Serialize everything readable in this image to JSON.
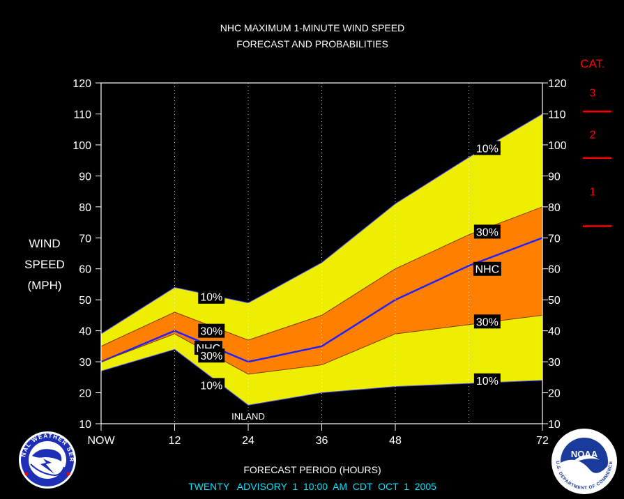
{
  "chart_data": {
    "type": "area",
    "title": "NHC MAXIMUM 1-MINUTE WIND SPEED",
    "subtitle": "FORECAST AND PROBABILITIES",
    "xlabel": "FORECAST PERIOD (HOURS)",
    "ylabel": [
      "WIND",
      "SPEED",
      "(MPH)"
    ],
    "ylim": [
      10,
      120
    ],
    "xlim": [
      0,
      72
    ],
    "yticks": [
      10,
      20,
      30,
      40,
      50,
      60,
      70,
      80,
      90,
      100,
      110,
      120
    ],
    "xticks": [
      {
        "x": 0,
        "label": "NOW"
      },
      {
        "x": 12,
        "label": "12"
      },
      {
        "x": 24,
        "label": "24"
      },
      {
        "x": 36,
        "label": "36"
      },
      {
        "x": 48,
        "label": "48"
      },
      {
        "x": 72,
        "label": "72"
      }
    ],
    "gridlines_x": [
      12,
      24,
      36,
      48,
      60
    ],
    "x": [
      0,
      12,
      24,
      36,
      48,
      60,
      72
    ],
    "series": [
      {
        "name": "10% upper",
        "values": [
          39,
          54,
          49,
          62,
          81,
          96,
          110
        ]
      },
      {
        "name": "30% upper",
        "values": [
          35,
          46,
          37,
          45,
          60,
          71,
          80
        ]
      },
      {
        "name": "NHC",
        "values": [
          30,
          40,
          30,
          35,
          50,
          61,
          70
        ]
      },
      {
        "name": "30% lower",
        "values": [
          30,
          39,
          26,
          29,
          39,
          42,
          45
        ]
      },
      {
        "name": "10% lower",
        "values": [
          27,
          34,
          16,
          20,
          22,
          23,
          24
        ]
      }
    ],
    "band_labels": [
      {
        "text": "10%",
        "x": 18,
        "y": 51
      },
      {
        "text": "30%",
        "x": 18,
        "y": 40
      },
      {
        "text": "NHC",
        "x": 17.5,
        "y": 34.5
      },
      {
        "text": "30%",
        "x": 18,
        "y": 32
      },
      {
        "text": "10%",
        "x": 18,
        "y": 22.5
      },
      {
        "text": "10%",
        "x": 63,
        "y": 99
      },
      {
        "text": "30%",
        "x": 63,
        "y": 72
      },
      {
        "text": "NHC",
        "x": 63,
        "y": 60
      },
      {
        "text": "30%",
        "x": 63,
        "y": 43
      },
      {
        "text": "10%",
        "x": 63,
        "y": 24
      }
    ],
    "annotation": {
      "text": "INLAND",
      "x": 24,
      "y": 12.5
    },
    "category_scale": {
      "title": "CAT.",
      "thresholds": [
        74,
        96,
        111
      ],
      "labels": [
        {
          "text": "1",
          "y": 85
        },
        {
          "text": "2",
          "y": 103.5
        },
        {
          "text": "3",
          "y": 117
        }
      ]
    },
    "colors": {
      "outer_band": "#eeee00",
      "inner_band": "#ff8000",
      "nhc_line": "#2020ff",
      "axis": "#ffffff",
      "category": "#ff0000"
    }
  },
  "footer": {
    "advisory": "TWENTY   ADVISORY  1  10:00  AM  CDT  OCT  1  2005",
    "color": "#00e5ff"
  },
  "logos": {
    "left_logo_text": "NATIONAL WEATHER SERVICE",
    "right_logo_text": "NOAA",
    "right_logo_ring": "U.S. DEPARTMENT OF COMMERCE"
  }
}
